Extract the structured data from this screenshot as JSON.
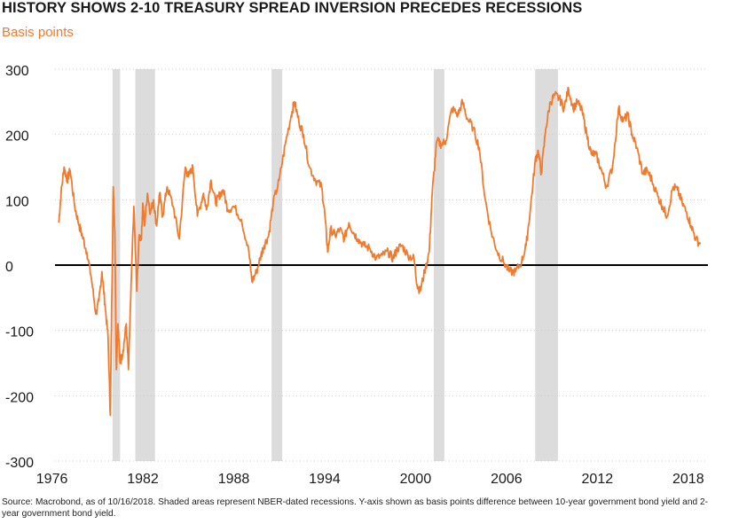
{
  "title": "HISTORY SHOWS 2-10 TREASURY SPREAD INVERSION PRECEDES RECESSIONS",
  "source": "Source: Macrobond, as of 10/16/2018. Shaded areas represent NBER-dated recessions. Y-axis shown as basis points difference between 10-year government bond yield and 2-year government bond yield.",
  "colors": {
    "series": "#f07a2d",
    "recession": "#dcdcdc",
    "zero_line": "#000000",
    "grid": "#cccccc",
    "subtitle": "#f07a2d"
  },
  "chart_data": {
    "type": "line",
    "title": "HISTORY SHOWS 2-10 TREASURY SPREAD INVERSION PRECEDES RECESSIONS",
    "ylabel": "Basis points",
    "xlabel": "",
    "xlim": [
      1976.2,
      2019.3
    ],
    "ylim": [
      -300,
      300
    ],
    "x_ticks": [
      "1976",
      "1982",
      "1988",
      "1994",
      "2000",
      "2006",
      "2012",
      "2018"
    ],
    "y_ticks": [
      "300",
      "200",
      "100",
      "0",
      "-100",
      "-200",
      "-300"
    ],
    "grid": "horizontal dotted",
    "legend": "none",
    "recessions": [
      [
        1980.0,
        1980.5
      ],
      [
        1981.5,
        1982.8
      ],
      [
        1990.5,
        1991.2
      ],
      [
        2001.2,
        2001.9
      ],
      [
        2007.9,
        2009.4
      ]
    ],
    "series": [
      {
        "x": [
          1976.45,
          1976.6,
          1976.8,
          1977.0,
          1977.2,
          1977.5,
          1977.8,
          1978.0,
          1978.3,
          1978.6,
          1978.9,
          1979.1,
          1979.3,
          1979.5,
          1979.7,
          1979.85,
          1979.95,
          1980.05,
          1980.15,
          1980.25,
          1980.35,
          1980.5,
          1980.7,
          1980.9,
          1981.05,
          1981.2,
          1981.4,
          1981.6,
          1981.75,
          1981.9,
          1982.0,
          1982.1,
          1982.3,
          1982.5,
          1982.7,
          1982.9,
          1983.1,
          1983.3,
          1983.6,
          1984.0,
          1984.4,
          1984.8,
          1985.0,
          1985.3,
          1985.6,
          1986.0,
          1986.2,
          1986.5,
          1986.8,
          1987.0,
          1987.3,
          1987.6,
          1988.0,
          1988.5,
          1989.0,
          1989.2,
          1989.5,
          1989.8,
          1990.0,
          1990.3,
          1990.6,
          1991.0,
          1991.4,
          1991.8,
          1992.0,
          1992.3,
          1992.6,
          1993.0,
          1993.4,
          1993.8,
          1994.0,
          1994.2,
          1994.4,
          1994.7,
          1995.0,
          1995.3,
          1995.6,
          1995.9,
          1996.2,
          1996.6,
          1997.0,
          1997.4,
          1997.8,
          1998.2,
          1998.5,
          1998.8,
          1999.1,
          1999.5,
          1999.9,
          2000.1,
          2000.3,
          2000.6,
          2000.9,
          2001.1,
          2001.4,
          2001.7,
          2002.0,
          2002.4,
          2002.8,
          2003.1,
          2003.4,
          2003.8,
          2004.2,
          2004.6,
          2005.0,
          2005.4,
          2005.8,
          2006.2,
          2006.6,
          2007.0,
          2007.3,
          2007.6,
          2007.9,
          2008.1,
          2008.3,
          2008.6,
          2008.9,
          2009.2,
          2009.5,
          2009.8,
          2010.1,
          2010.4,
          2010.7,
          2011.0,
          2011.3,
          2011.6,
          2011.9,
          2012.2,
          2012.6,
          2013.0,
          2013.4,
          2013.7,
          2014.0,
          2014.3,
          2014.6,
          2015.0,
          2015.3,
          2015.6,
          2016.0,
          2016.3,
          2016.6,
          2017.0,
          2017.3,
          2017.6,
          2017.9,
          2018.2,
          2018.5,
          2018.8
        ],
        "y": [
          65,
          110,
          150,
          130,
          145,
          90,
          60,
          45,
          20,
          -20,
          -75,
          -55,
          -10,
          -60,
          -110,
          -230,
          -50,
          120,
          50,
          -160,
          -90,
          -150,
          -130,
          -90,
          -160,
          -50,
          90,
          -40,
          45,
          40,
          95,
          60,
          110,
          80,
          100,
          60,
          110,
          75,
          120,
          90,
          40,
          150,
          135,
          150,
          75,
          110,
          85,
          130,
          95,
          105,
          115,
          85,
          90,
          70,
          20,
          -25,
          -10,
          15,
          30,
          45,
          95,
          130,
          185,
          230,
          250,
          220,
          200,
          150,
          130,
          120,
          80,
          20,
          55,
          45,
          55,
          40,
          65,
          50,
          40,
          30,
          25,
          10,
          15,
          20,
          10,
          25,
          30,
          15,
          10,
          -30,
          -40,
          -10,
          20,
          110,
          190,
          185,
          190,
          240,
          230,
          250,
          225,
          210,
          180,
          100,
          50,
          20,
          5,
          -10,
          -10,
          5,
          30,
          90,
          160,
          175,
          140,
          210,
          250,
          260,
          255,
          240,
          270,
          240,
          250,
          235,
          200,
          170,
          170,
          150,
          120,
          150,
          240,
          220,
          230,
          200,
          180,
          140,
          145,
          130,
          105,
          90,
          75,
          120,
          115,
          95,
          80,
          60,
          40,
          32
        ]
      }
    ]
  }
}
